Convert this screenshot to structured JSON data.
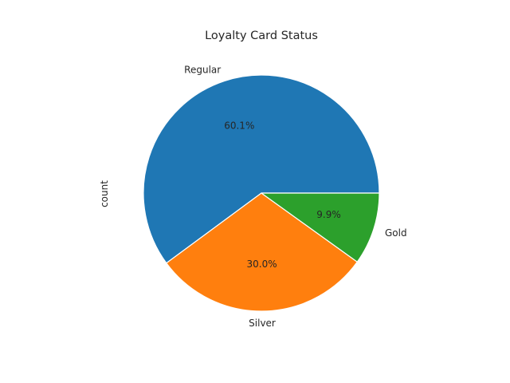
{
  "chart_data": {
    "type": "pie",
    "title": "Loyalty Card Status",
    "ylabel": "count",
    "categories": [
      "Regular",
      "Silver",
      "Gold"
    ],
    "values": [
      60.1,
      30.0,
      9.9
    ],
    "value_labels": [
      "60.1%",
      "30.0%",
      "9.9%"
    ],
    "colors": [
      "#1f77b4",
      "#ff7f0e",
      "#2ca02c"
    ],
    "start_angle_deg": 0,
    "direction": "counterclockwise",
    "legend": "none"
  }
}
